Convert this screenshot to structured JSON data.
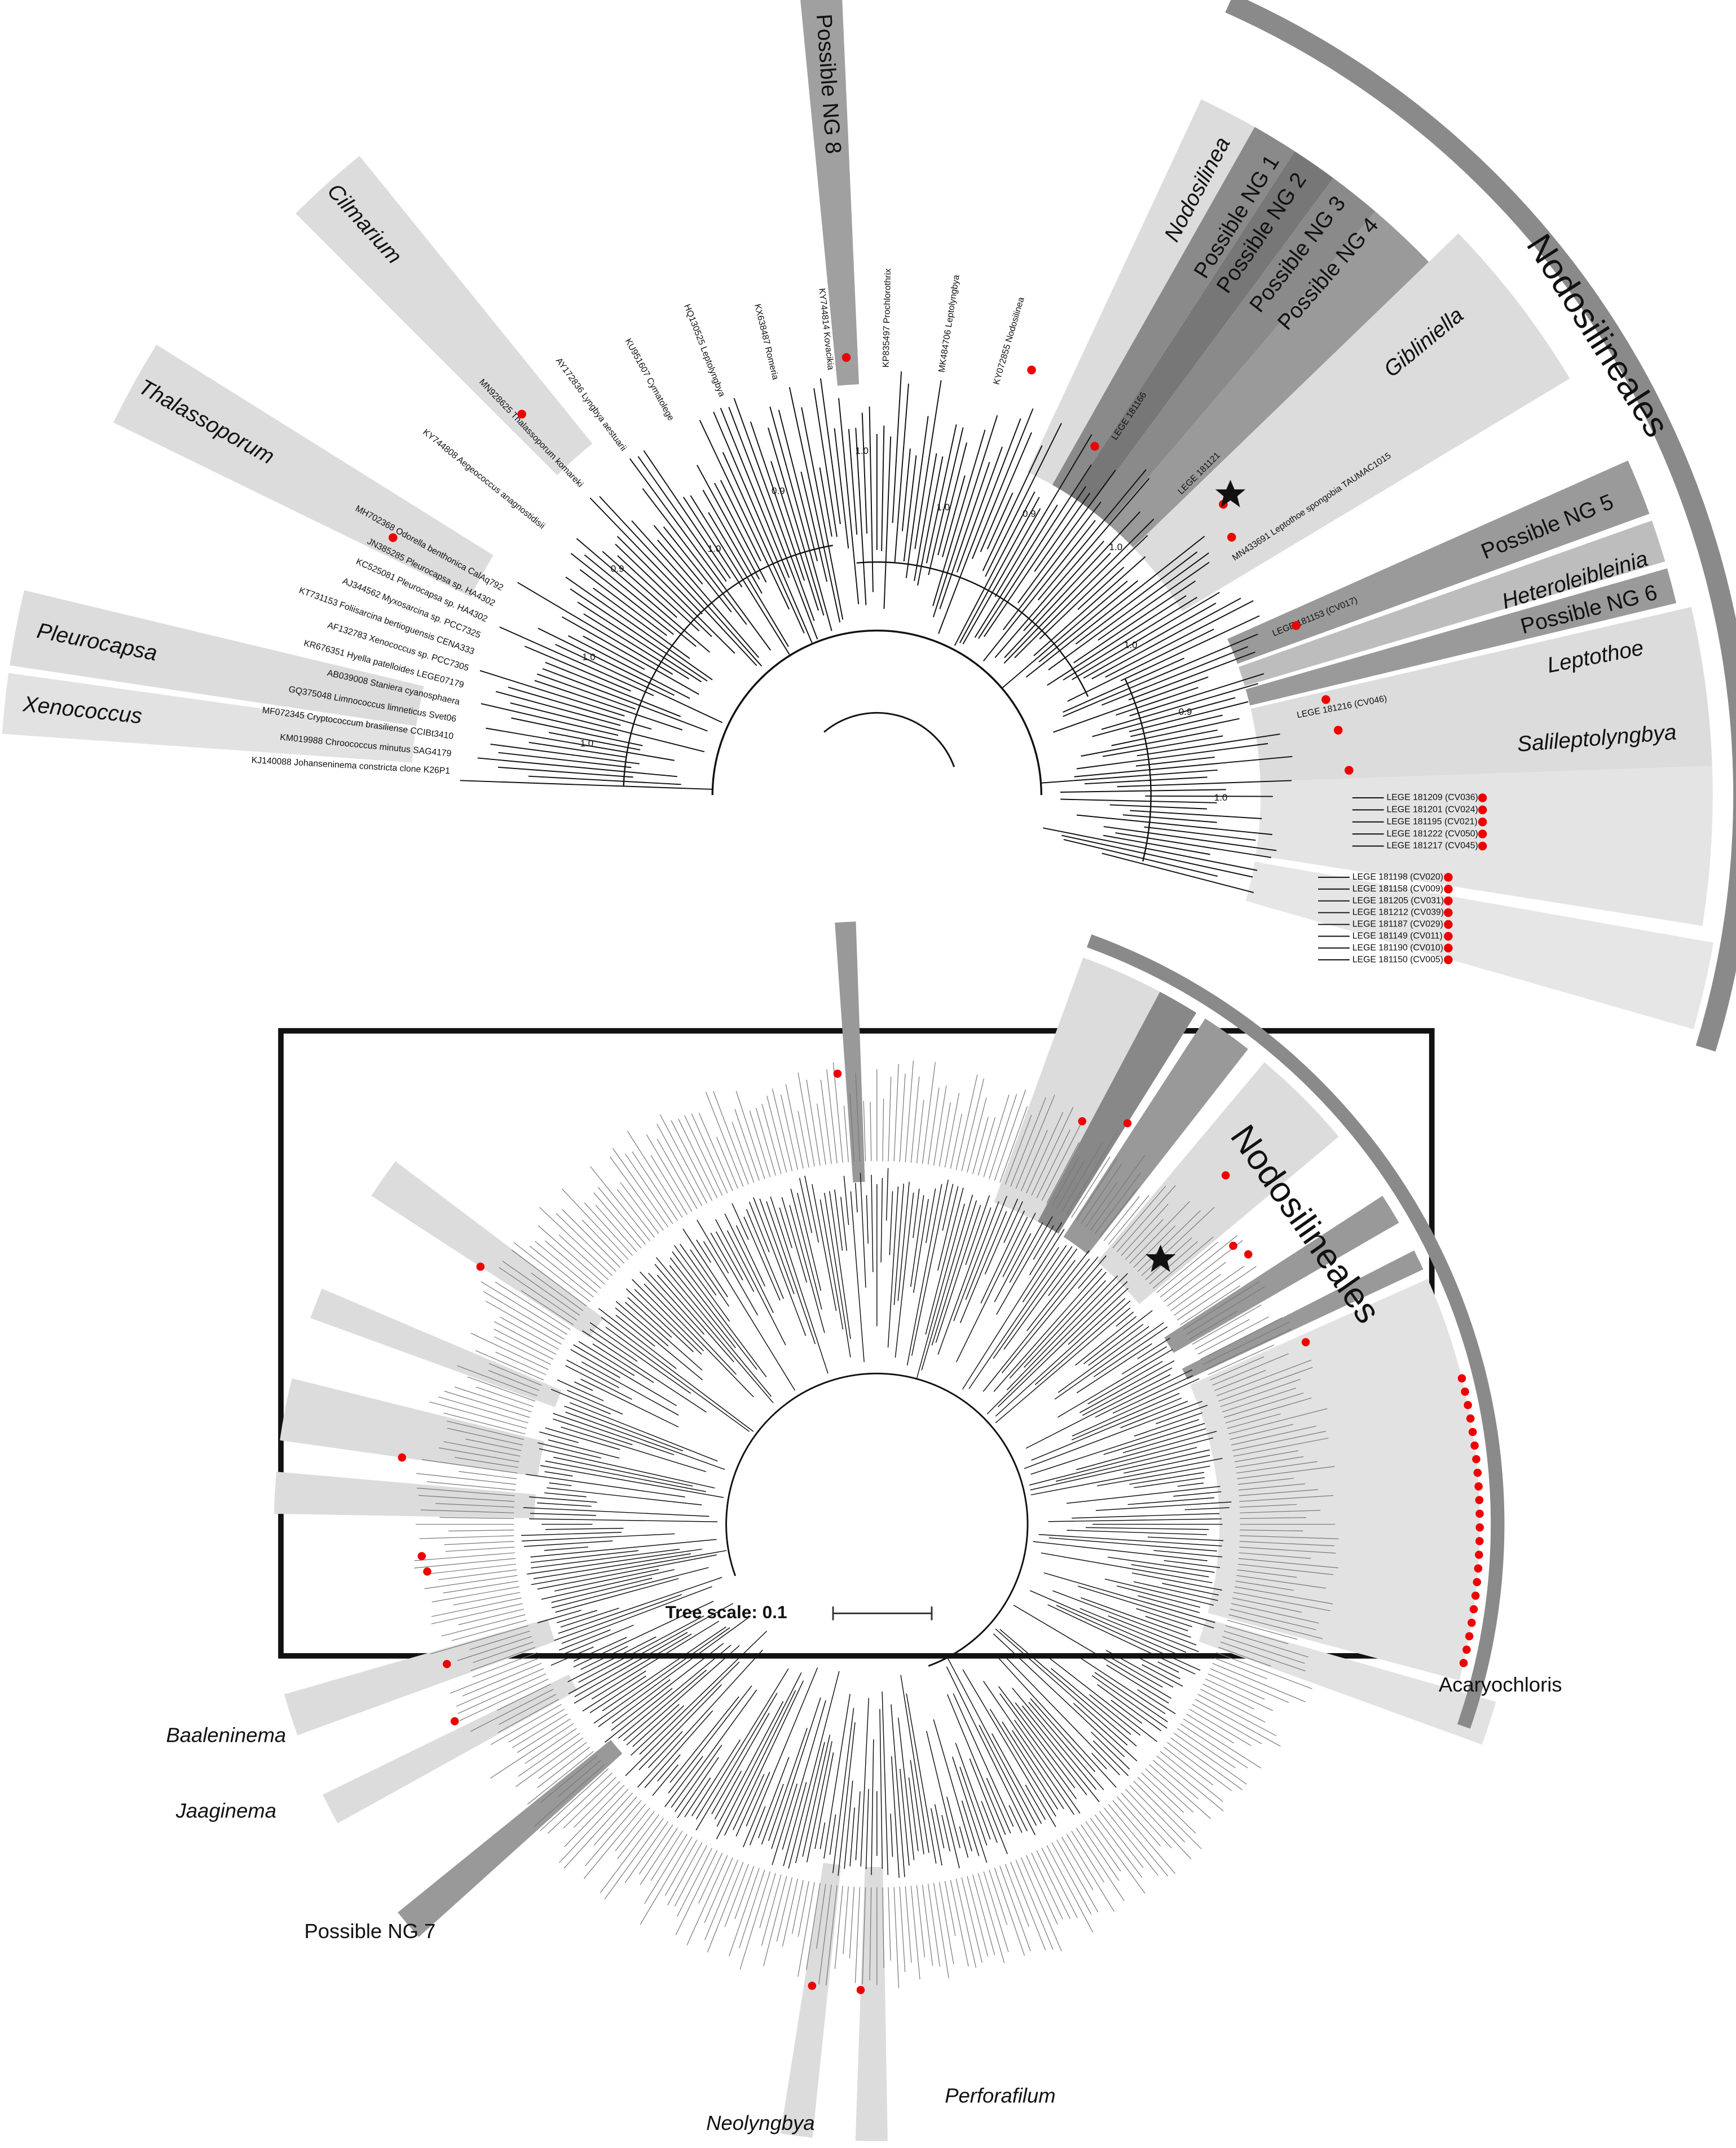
{
  "top_panel": {
    "order_label": "Nodosilineales",
    "clades": [
      "Possible NG 8",
      "Cilmarium",
      "Thalassoporum",
      "Pleurocapsa",
      "Xenococcus",
      "Nodosilinea",
      "Possible NG 1",
      "Possible NG 2",
      "Possible NG 3",
      "Possible NG 4",
      "Gibliniella",
      "Possible NG 5",
      "Heteroleibleinia",
      "Possible NG 6",
      "Leptothoe",
      "Salileptolyngbya"
    ],
    "leaves": [
      "KJ140088 Johanseninema constricta clone K26P1",
      "KM019988 Chroococcus minutus SAG4179",
      "MF072345 Cryptococcum brasiliense CCIBt3410",
      "GQ375048 Limnococcus limneticus Svet06",
      "AB039008 Staniera cyanosphaera",
      "KR676351 Hyella patelloides LEGE07179",
      "AF132783 Xenococcus sp. PCC7305",
      "KT731153 Foliisarcina bertioguensis CENA333",
      "AJ344562 Myxosarcina sp. PCC7325",
      "KC525081 Pleurocapsa sp. HA4302",
      "JN385285 Pleurocapsa sp. HA4302",
      "MH702368 Odorella benthonica CalAq792",
      "KY744808 Aegeococcus anagnostidisii",
      "MN928625 Thalassoporum komareki",
      "AY172836 Lyngbya aestuarii",
      "KU951607 Cymatolege",
      "HQ130525 Leptolyngbya",
      "KX638487 Romeria",
      "KY744814 Kovacikia",
      "KP835497 Prochlorothrix",
      "MK484706 Leptolyngbya",
      "KY072855 Nodosilinea",
      "LEGE 181166",
      "LEGE 181121",
      "MN433691 Leptothoe spongobia TAUMAC1015",
      "LEGE 181153 (CV017)",
      "LEGE 181216 (CV046)"
    ],
    "stacked_leaves": [
      "LEGE 181209 (CV036)",
      "LEGE 181201 (CV024)",
      "LEGE 181195 (CV021)",
      "LEGE 181222 (CV050)",
      "LEGE 181217 (CV045)",
      "LEGE 181198 (CV020)",
      "LEGE 181158 (CV009)",
      "LEGE 181205 (CV031)",
      "LEGE 181212 (CV039)",
      "LEGE 181187 (CV029)",
      "LEGE 181149 (CV011)",
      "LEGE 181190 (CV010)",
      "LEGE 181150 (CV005)"
    ],
    "support_values": [
      "1.0",
      "1.0",
      "0.9",
      "1.0",
      "0.9",
      "1.0",
      "1.0",
      "0.9",
      "1.0",
      "1.0",
      "0.9",
      "1.0"
    ]
  },
  "bottom_panel": {
    "order_label": "Nodosilineales",
    "clades": [
      "Acaryochloris",
      "Baaleninema",
      "Jaaginema",
      "Possible NG 7",
      "Neolyngbya",
      "Perforafilum"
    ],
    "tree_scale": "Tree scale: 0.1"
  }
}
